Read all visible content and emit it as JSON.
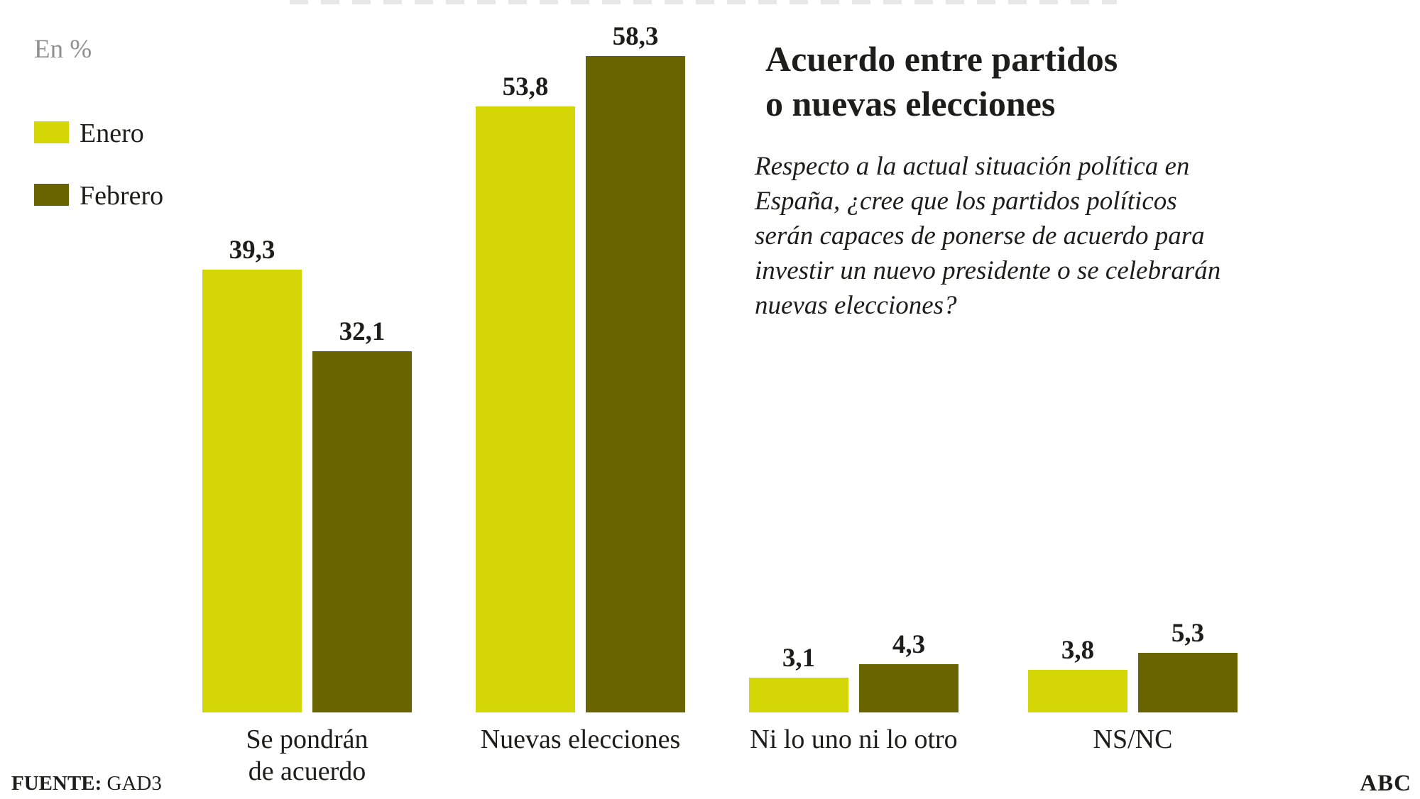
{
  "legend": {
    "units_label": "En %",
    "items": [
      {
        "label": "Enero",
        "color": "#d5d605"
      },
      {
        "label": "Febrero",
        "color": "#6a6400"
      }
    ]
  },
  "title": {
    "line1": "Acuerdo entre partidos",
    "line2": "o nuevas elecciones"
  },
  "question": {
    "full": "Respecto a la actual situación política en España, ¿cree que los partidos políticos serán capaces de ponerse de acuerdo para investir un nuevo presidente o se celebrarán nuevas elecciones?",
    "lines": [
      "Respecto a la actual situación política en",
      "España, ¿cree que los partidos políticos",
      "serán capaces de ponerse de acuerdo para",
      "investir un nuevo presidente o se celebrarán",
      "nuevas elecciones?"
    ]
  },
  "chart_data": {
    "type": "bar",
    "units": "%",
    "categories": [
      "Se pondrán de acuerdo",
      "Nuevas elecciones",
      "Ni lo uno ni lo otro",
      "NS/NC"
    ],
    "category_label_lines": [
      [
        "Se pondrán",
        "de acuerdo"
      ],
      [
        "Nuevas elecciones"
      ],
      [
        "Ni lo uno ni lo otro"
      ],
      [
        "NS/NC"
      ]
    ],
    "series": [
      {
        "name": "Enero",
        "color": "#d5d605",
        "values": [
          39.3,
          53.8,
          3.1,
          3.8
        ],
        "labels": [
          "39,3",
          "53,8",
          "3,1",
          "3,8"
        ]
      },
      {
        "name": "Febrero",
        "color": "#6a6400",
        "values": [
          32.1,
          58.3,
          4.3,
          5.3
        ],
        "labels": [
          "32,1",
          "58,3",
          "4,3",
          "5,3"
        ]
      }
    ],
    "ylim": [
      0,
      60
    ],
    "grid": false,
    "axis_lines": false,
    "legend_position": "top-left",
    "value_label_format": "decimal-comma"
  },
  "footer": {
    "source_label": "FUENTE:",
    "source_value": "GAD3",
    "brand": "ABC"
  }
}
